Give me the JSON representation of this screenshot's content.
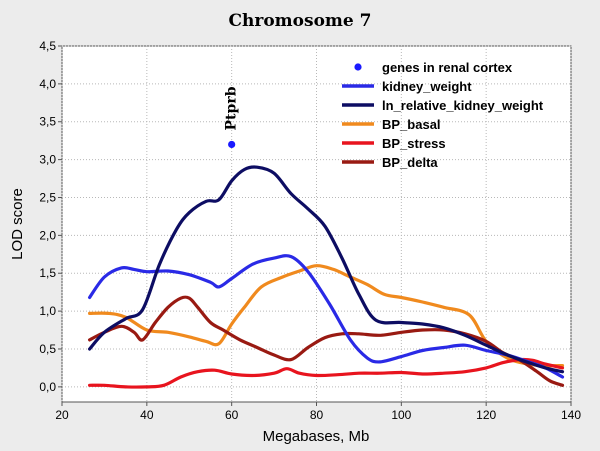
{
  "chart_data": {
    "type": "line",
    "title": "Chromosome 7",
    "xlabel": "Megabases, Mb",
    "ylabel": "LOD score",
    "xlim": [
      20,
      140
    ],
    "ylim": [
      -0.2,
      4.5
    ],
    "xticks": [
      20,
      40,
      60,
      80,
      100,
      120,
      140
    ],
    "xtick_labels": [
      "20",
      "40",
      "60",
      "80",
      "100",
      "120",
      "140"
    ],
    "yticks": [
      0,
      0.5,
      1.0,
      1.5,
      2.0,
      2.5,
      3.0,
      3.5,
      4.0,
      4.5
    ],
    "ytick_labels": [
      "0,0",
      "0,5",
      "1,0",
      "1,5",
      "2,0",
      "2,5",
      "3,0",
      "3,5",
      "4,0",
      "4,5"
    ],
    "grid": true,
    "legend_position": "top-right",
    "points": [
      {
        "name": "genes in renal cortex",
        "color": "#1a1aff",
        "values": [
          {
            "x": 60,
            "y": 3.2,
            "label": "Ptprb"
          }
        ]
      }
    ],
    "series": [
      {
        "name": "kidney_weight",
        "color": "#2a2ae6",
        "x": [
          26.5,
          30,
          34,
          37,
          40,
          45,
          50,
          55,
          57,
          60,
          65,
          70,
          74,
          78,
          83,
          88,
          92,
          95,
          100,
          105,
          110,
          115,
          120,
          125,
          130,
          134,
          138
        ],
        "y": [
          1.18,
          1.45,
          1.57,
          1.55,
          1.52,
          1.53,
          1.48,
          1.38,
          1.32,
          1.43,
          1.62,
          1.7,
          1.72,
          1.52,
          1.1,
          0.62,
          0.38,
          0.33,
          0.4,
          0.48,
          0.52,
          0.55,
          0.48,
          0.42,
          0.33,
          0.25,
          0.13
        ]
      },
      {
        "name": "ln_relative_kidney_weight",
        "color": "#0d0d63",
        "x": [
          26.5,
          30,
          35,
          39,
          43,
          47,
          50,
          54,
          57,
          60,
          63,
          66,
          70,
          74,
          78,
          82,
          86,
          90,
          94,
          100,
          105,
          110,
          115,
          120,
          125,
          130,
          134,
          138
        ],
        "y": [
          0.5,
          0.72,
          0.9,
          1.02,
          1.62,
          2.08,
          2.3,
          2.45,
          2.47,
          2.72,
          2.87,
          2.9,
          2.82,
          2.55,
          2.35,
          2.12,
          1.7,
          1.22,
          0.88,
          0.85,
          0.83,
          0.78,
          0.68,
          0.55,
          0.42,
          0.32,
          0.25,
          0.2
        ]
      },
      {
        "name": "BP_basal",
        "color": "#f08a1e",
        "x": [
          26.5,
          31,
          35,
          40,
          45,
          50,
          54,
          57,
          60,
          63,
          67,
          72,
          76,
          80,
          84,
          88,
          92,
          96,
          100,
          105,
          110,
          116,
          120,
          125,
          130,
          134,
          138
        ],
        "y": [
          0.97,
          0.97,
          0.92,
          0.75,
          0.72,
          0.66,
          0.6,
          0.57,
          0.83,
          1.05,
          1.32,
          1.45,
          1.53,
          1.6,
          1.55,
          1.45,
          1.35,
          1.22,
          1.18,
          1.12,
          1.05,
          0.95,
          0.6,
          0.38,
          0.3,
          0.28,
          0.28
        ]
      },
      {
        "name": "BP_stress",
        "color": "#e8141e",
        "x": [
          26.5,
          30,
          35,
          40,
          44,
          48,
          52,
          56,
          60,
          65,
          70,
          73,
          76,
          80,
          85,
          90,
          95,
          100,
          105,
          110,
          115,
          120,
          124,
          128,
          131,
          134,
          138
        ],
        "y": [
          0.02,
          0.02,
          0.0,
          0.0,
          0.02,
          0.13,
          0.2,
          0.22,
          0.17,
          0.15,
          0.18,
          0.24,
          0.18,
          0.15,
          0.16,
          0.18,
          0.18,
          0.19,
          0.17,
          0.18,
          0.2,
          0.25,
          0.32,
          0.36,
          0.35,
          0.3,
          0.25
        ]
      },
      {
        "name": "BP_delta",
        "color": "#991a12",
        "x": [
          26.5,
          30,
          34,
          37,
          39,
          42,
          45,
          48,
          50,
          52,
          55,
          58,
          62,
          66,
          70,
          74,
          78,
          82,
          86,
          90,
          95,
          100,
          105,
          110,
          115,
          120,
          124,
          128,
          132,
          135,
          138
        ],
        "y": [
          0.62,
          0.72,
          0.8,
          0.72,
          0.62,
          0.85,
          1.05,
          1.17,
          1.17,
          1.05,
          0.85,
          0.75,
          0.62,
          0.52,
          0.42,
          0.36,
          0.52,
          0.65,
          0.7,
          0.7,
          0.68,
          0.72,
          0.75,
          0.75,
          0.7,
          0.6,
          0.45,
          0.35,
          0.2,
          0.08,
          0.02
        ]
      }
    ]
  }
}
